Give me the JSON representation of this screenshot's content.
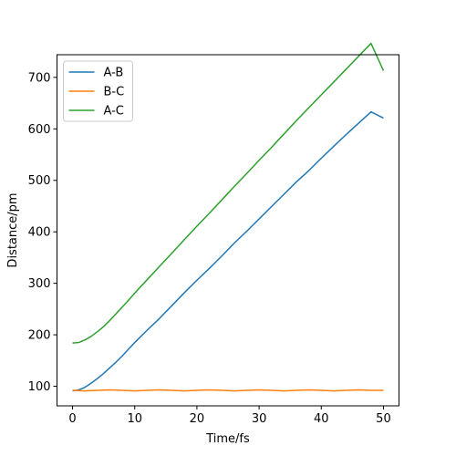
{
  "chart_data": {
    "type": "line",
    "title": "",
    "xlabel": "Time/fs",
    "ylabel": "Distance/pm",
    "xlim": [
      -2.5,
      52.5
    ],
    "ylim": [
      62,
      744
    ],
    "xticks": [
      0,
      10,
      20,
      30,
      40,
      50
    ],
    "yticks": [
      100,
      200,
      300,
      400,
      500,
      600,
      700
    ],
    "grid": false,
    "legend": "top-left",
    "series": [
      {
        "name": "A-B",
        "color": "#1f77b4",
        "x": [
          0,
          1,
          2,
          3,
          4,
          5,
          6,
          7,
          8,
          9,
          10,
          12,
          14,
          16,
          18,
          20,
          22,
          24,
          26,
          28,
          30,
          32,
          34,
          36,
          38,
          40,
          42,
          44,
          46,
          48,
          50
        ],
        "y": [
          91,
          93,
          98,
          106,
          115,
          125,
          136,
          147,
          159,
          172,
          185,
          209,
          232,
          257,
          282,
          306,
          329,
          353,
          378,
          401,
          425,
          449,
          473,
          497,
          519,
          543,
          566,
          589,
          611,
          633,
          621
        ]
      },
      {
        "name": "B-C",
        "color": "#ff7f0e",
        "x": [
          0,
          2,
          4,
          6,
          8,
          10,
          12,
          14,
          16,
          18,
          20,
          22,
          24,
          26,
          28,
          30,
          32,
          34,
          36,
          38,
          40,
          42,
          44,
          46,
          48,
          50
        ],
        "y": [
          92,
          91,
          92,
          93,
          92,
          91,
          92,
          93,
          92,
          91,
          92,
          93,
          92,
          91,
          92,
          93,
          92,
          91,
          92,
          93,
          92,
          91,
          92,
          93,
          92,
          92
        ]
      },
      {
        "name": "A-C",
        "color": "#2ca02c",
        "x": [
          0,
          1,
          2,
          3,
          4,
          5,
          6,
          7,
          8,
          9,
          10,
          12,
          14,
          16,
          18,
          20,
          22,
          24,
          26,
          28,
          30,
          32,
          34,
          36,
          38,
          40,
          42,
          44,
          46,
          48,
          50
        ],
        "y": [
          184,
          185,
          190,
          197,
          206,
          216,
          228,
          241,
          254,
          267,
          281,
          307,
          333,
          359,
          385,
          411,
          436,
          462,
          488,
          513,
          539,
          564,
          590,
          616,
          641,
          666,
          691,
          716,
          741,
          766,
          713
        ]
      }
    ]
  }
}
